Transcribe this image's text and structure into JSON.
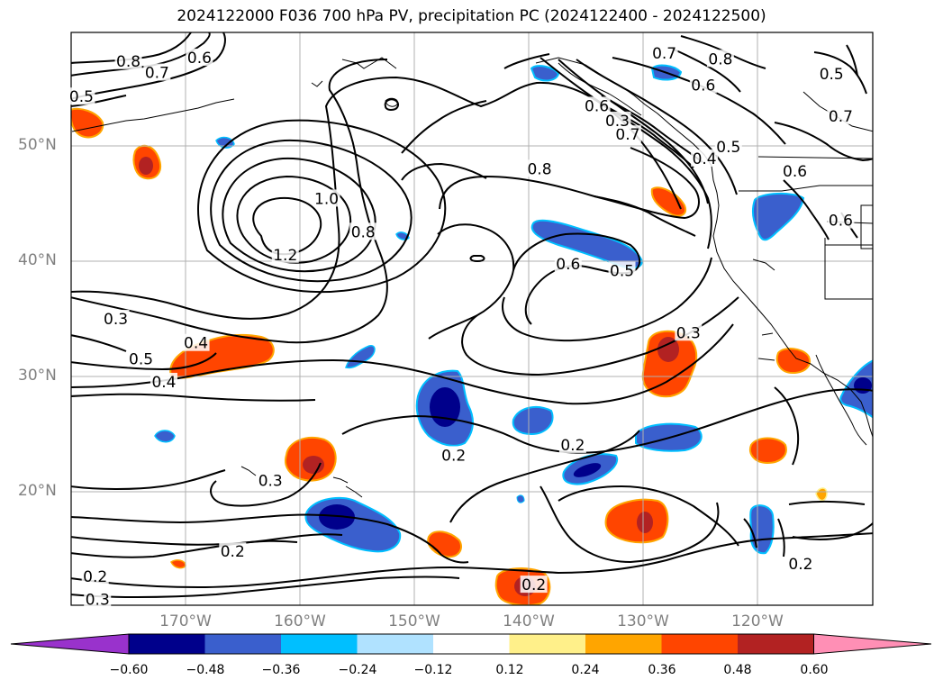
{
  "title": "2024122000 F036 700 hPa PV, precipitation PC (2024122400 - 2024122500)",
  "map": {
    "type": "weather-map",
    "lon_range": [
      -180,
      -110
    ],
    "lat_range": [
      10,
      60
    ],
    "lat_labels": [
      {
        "value": 50,
        "text": "50°N"
      },
      {
        "value": 40,
        "text": "40°N"
      },
      {
        "value": 30,
        "text": "30°N"
      },
      {
        "value": 20,
        "text": "20°N"
      }
    ],
    "lon_labels": [
      {
        "value": -170,
        "text": "170°W"
      },
      {
        "value": -160,
        "text": "160°W"
      },
      {
        "value": -150,
        "text": "150°W"
      },
      {
        "value": -140,
        "text": "140°W"
      },
      {
        "value": -130,
        "text": "130°W"
      },
      {
        "value": -120,
        "text": "120°W"
      }
    ],
    "gridlines": true,
    "contour_labels": [
      {
        "text": "0.8",
        "lon": -175,
        "lat": 57.5
      },
      {
        "text": "0.7",
        "lon": -172.5,
        "lat": 56.5
      },
      {
        "text": "0.6",
        "lon": -168.8,
        "lat": 57.8
      },
      {
        "text": "0.5",
        "lon": -179.1,
        "lat": 54.4
      },
      {
        "text": "1.0",
        "lon": -157.7,
        "lat": 45.5
      },
      {
        "text": "1.2",
        "lon": -161.3,
        "lat": 40.6
      },
      {
        "text": "0.8",
        "lon": -154.5,
        "lat": 42.6
      },
      {
        "text": "0.8",
        "lon": -139.1,
        "lat": 48.1
      },
      {
        "text": "0.7",
        "lon": -131.4,
        "lat": 51.1
      },
      {
        "text": "0.7",
        "lon": -128.2,
        "lat": 58.2
      },
      {
        "text": "0.8",
        "lon": -123.3,
        "lat": 57.7
      },
      {
        "text": "0.6",
        "lon": -124.8,
        "lat": 55.4
      },
      {
        "text": "0.6",
        "lon": -134.1,
        "lat": 53.6
      },
      {
        "text": "0.3",
        "lon": -132.3,
        "lat": 52.3
      },
      {
        "text": "0.4",
        "lon": -124.7,
        "lat": 49.0
      },
      {
        "text": "0.5",
        "lon": -122.6,
        "lat": 50.0
      },
      {
        "text": "0.5",
        "lon": -113.6,
        "lat": 56.4
      },
      {
        "text": "0.7",
        "lon": -112.8,
        "lat": 52.7
      },
      {
        "text": "0.6",
        "lon": -116.8,
        "lat": 47.9
      },
      {
        "text": "0.6",
        "lon": -112.8,
        "lat": 43.6
      },
      {
        "text": "0.6",
        "lon": -136.6,
        "lat": 39.8
      },
      {
        "text": "0.5",
        "lon": -131.9,
        "lat": 39.2
      },
      {
        "text": "0.3",
        "lon": -176.1,
        "lat": 35.0
      },
      {
        "text": "0.4",
        "lon": -169.1,
        "lat": 32.9
      },
      {
        "text": "0.5",
        "lon": -173.9,
        "lat": 31.5
      },
      {
        "text": "0.4",
        "lon": -171.9,
        "lat": 29.5
      },
      {
        "text": "0.3",
        "lon": -126.1,
        "lat": 33.8
      },
      {
        "text": "0.2",
        "lon": -146.6,
        "lat": 23.1
      },
      {
        "text": "0.2",
        "lon": -136.2,
        "lat": 24.0
      },
      {
        "text": "0.3",
        "lon": -162.6,
        "lat": 20.9
      },
      {
        "text": "0.2",
        "lon": -165.9,
        "lat": 14.7
      },
      {
        "text": "0.2",
        "lon": -177.9,
        "lat": 12.5
      },
      {
        "text": "0.3",
        "lon": -177.7,
        "lat": 10.5
      },
      {
        "text": "0.2",
        "lon": -139.6,
        "lat": 11.8
      },
      {
        "text": "0.2",
        "lon": -116.3,
        "lat": 13.6
      }
    ]
  },
  "colorbar": {
    "tick_labels": [
      "−0.60",
      "−0.48",
      "−0.36",
      "−0.24",
      "−0.12",
      "0.12",
      "0.24",
      "0.36",
      "0.48",
      "0.60"
    ],
    "colors": [
      "#9932cc",
      "#00008b",
      "#3a5fcd",
      "#00bfff",
      "#b0e2ff",
      "#ffffff",
      "#fff08a",
      "#ffa500",
      "#ff4500",
      "#b22222",
      "#ff8fb5"
    ]
  }
}
